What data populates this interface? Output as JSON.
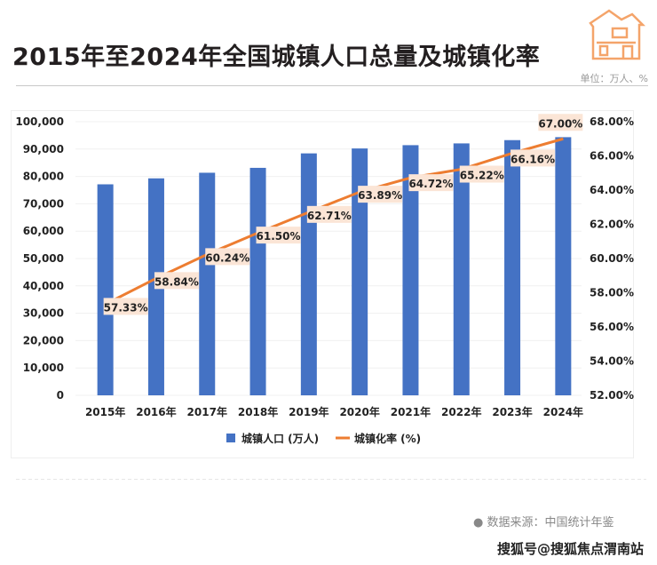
{
  "header": {
    "title": "2015年至2024年全国城镇人口总量及城镇化率",
    "unit": "单位：万人、%"
  },
  "footer": {
    "source": "● 数据来源：中国统计年鉴",
    "brand": "搜狐号@搜狐焦点渭南站"
  },
  "colors": {
    "bar": "#4472c4",
    "line": "#ed7d31",
    "label_bg": "#fbe5d6",
    "icon": "#f4a46a"
  },
  "chart_data": {
    "type": "bar+line",
    "categories": [
      "2015年",
      "2016年",
      "2017年",
      "2018年",
      "2019年",
      "2020年",
      "2021年",
      "2022年",
      "2023年",
      "2024年"
    ],
    "series": [
      {
        "name": "城镇人口 (万人)",
        "type": "bar",
        "axis": "left",
        "values": [
          77116,
          79298,
          81347,
          83137,
          88426,
          90220,
          91425,
          92071,
          93267,
          94350
        ]
      },
      {
        "name": "城镇化率 (%)",
        "type": "line",
        "axis": "right",
        "values": [
          57.33,
          58.84,
          60.24,
          61.5,
          62.71,
          63.89,
          64.72,
          65.22,
          66.16,
          67.0
        ],
        "labels": [
          "57.33%",
          "58.84%",
          "60.24%",
          "61.50%",
          "62.71%",
          "63.89%",
          "64.72%",
          "65.22%",
          "66.16%",
          "67.00%"
        ]
      }
    ],
    "left_axis": {
      "range": [
        0,
        100000
      ],
      "ticks": [
        "0",
        "10,000",
        "20,000",
        "30,000",
        "40,000",
        "50,000",
        "60,000",
        "70,000",
        "80,000",
        "90,000",
        "100,000"
      ]
    },
    "right_axis": {
      "range": [
        52,
        68
      ],
      "ticks": [
        "52.00%",
        "54.00%",
        "56.00%",
        "58.00%",
        "60.00%",
        "62.00%",
        "64.00%",
        "66.00%",
        "68.00%"
      ]
    },
    "legend": {
      "position": "bottom",
      "items": [
        "城镇人口 (万人)",
        "城镇化率 (%)"
      ]
    },
    "grid": true
  }
}
